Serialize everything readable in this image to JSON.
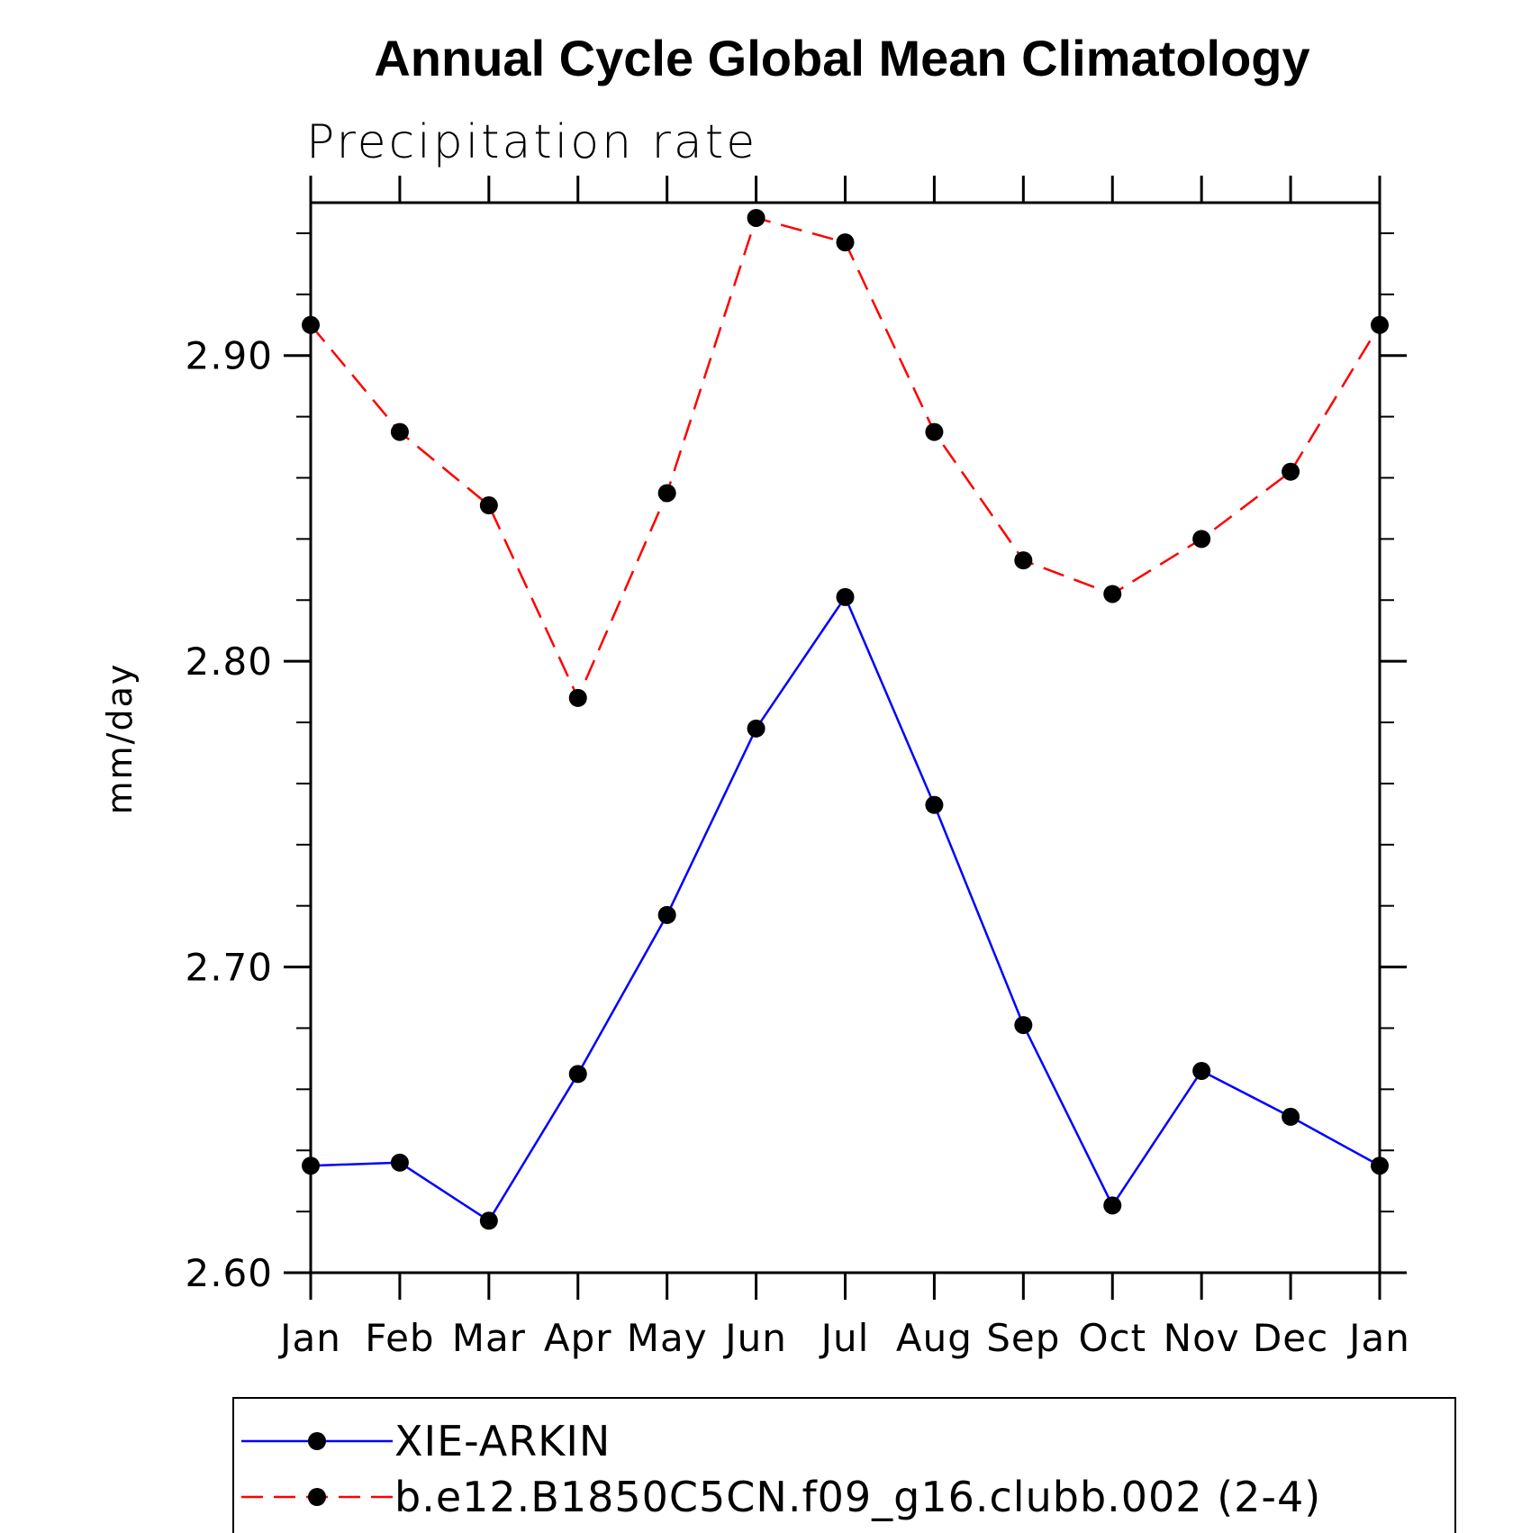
{
  "chart_data": {
    "type": "line",
    "title": "Annual Cycle Global Mean Climatology",
    "subtitle": "Precipitation rate",
    "xlabel": "",
    "ylabel": "mm/day",
    "categories": [
      "Jan",
      "Feb",
      "Mar",
      "Apr",
      "May",
      "Jun",
      "Jul",
      "Aug",
      "Sep",
      "Oct",
      "Nov",
      "Dec",
      "Jan"
    ],
    "ylim": [
      2.6,
      2.95
    ],
    "yticks": [
      2.6,
      2.7,
      2.8,
      2.9
    ],
    "ytick_labels": [
      "2.60",
      "2.70",
      "2.80",
      "2.90"
    ],
    "series": [
      {
        "name": "XIE-ARKIN",
        "color": "#0000ff",
        "linestyle": "solid",
        "marker": "circle",
        "values": [
          2.635,
          2.636,
          2.617,
          2.665,
          2.717,
          2.778,
          2.821,
          2.753,
          2.681,
          2.622,
          2.666,
          2.651,
          2.635
        ]
      },
      {
        "name": "b.e12.B1850C5CN.f09_g16.clubb.002 (2-4)",
        "color": "#ff0000",
        "linestyle": "dashed",
        "marker": "circle",
        "values": [
          2.91,
          2.875,
          2.851,
          2.788,
          2.855,
          2.945,
          2.937,
          2.875,
          2.833,
          2.822,
          2.84,
          2.862,
          2.91
        ]
      }
    ],
    "legend_position": "bottom"
  }
}
